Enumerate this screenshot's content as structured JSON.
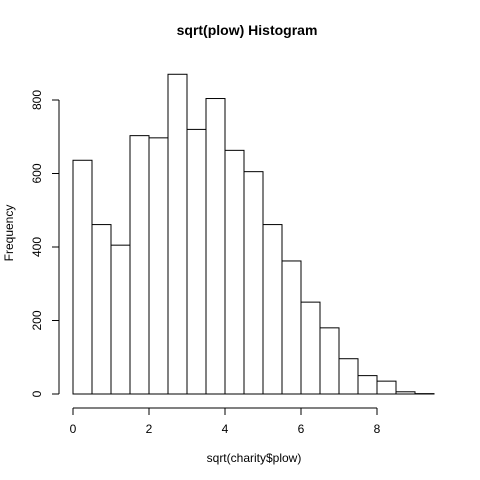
{
  "chart_data": {
    "type": "bar",
    "title": "sqrt(plow) Histogram",
    "xlabel": "sqrt(charity$plow)",
    "ylabel": "Frequency",
    "bin_edges": [
      0,
      0.5,
      1,
      1.5,
      2,
      2.5,
      3,
      3.5,
      4,
      4.5,
      5,
      5.5,
      6,
      6.5,
      7,
      7.5,
      8,
      8.5,
      9,
      9.5
    ],
    "values": [
      636,
      461,
      405,
      703,
      697,
      870,
      720,
      804,
      663,
      605,
      461,
      362,
      250,
      180,
      96,
      50,
      35,
      6,
      1
    ],
    "xlim": [
      0,
      9.5
    ],
    "ylim": [
      0,
      870
    ],
    "x_ticks": [
      0,
      2,
      4,
      6,
      8
    ],
    "y_ticks": [
      0,
      200,
      400,
      600,
      800
    ],
    "grid": false,
    "legend": "none"
  }
}
